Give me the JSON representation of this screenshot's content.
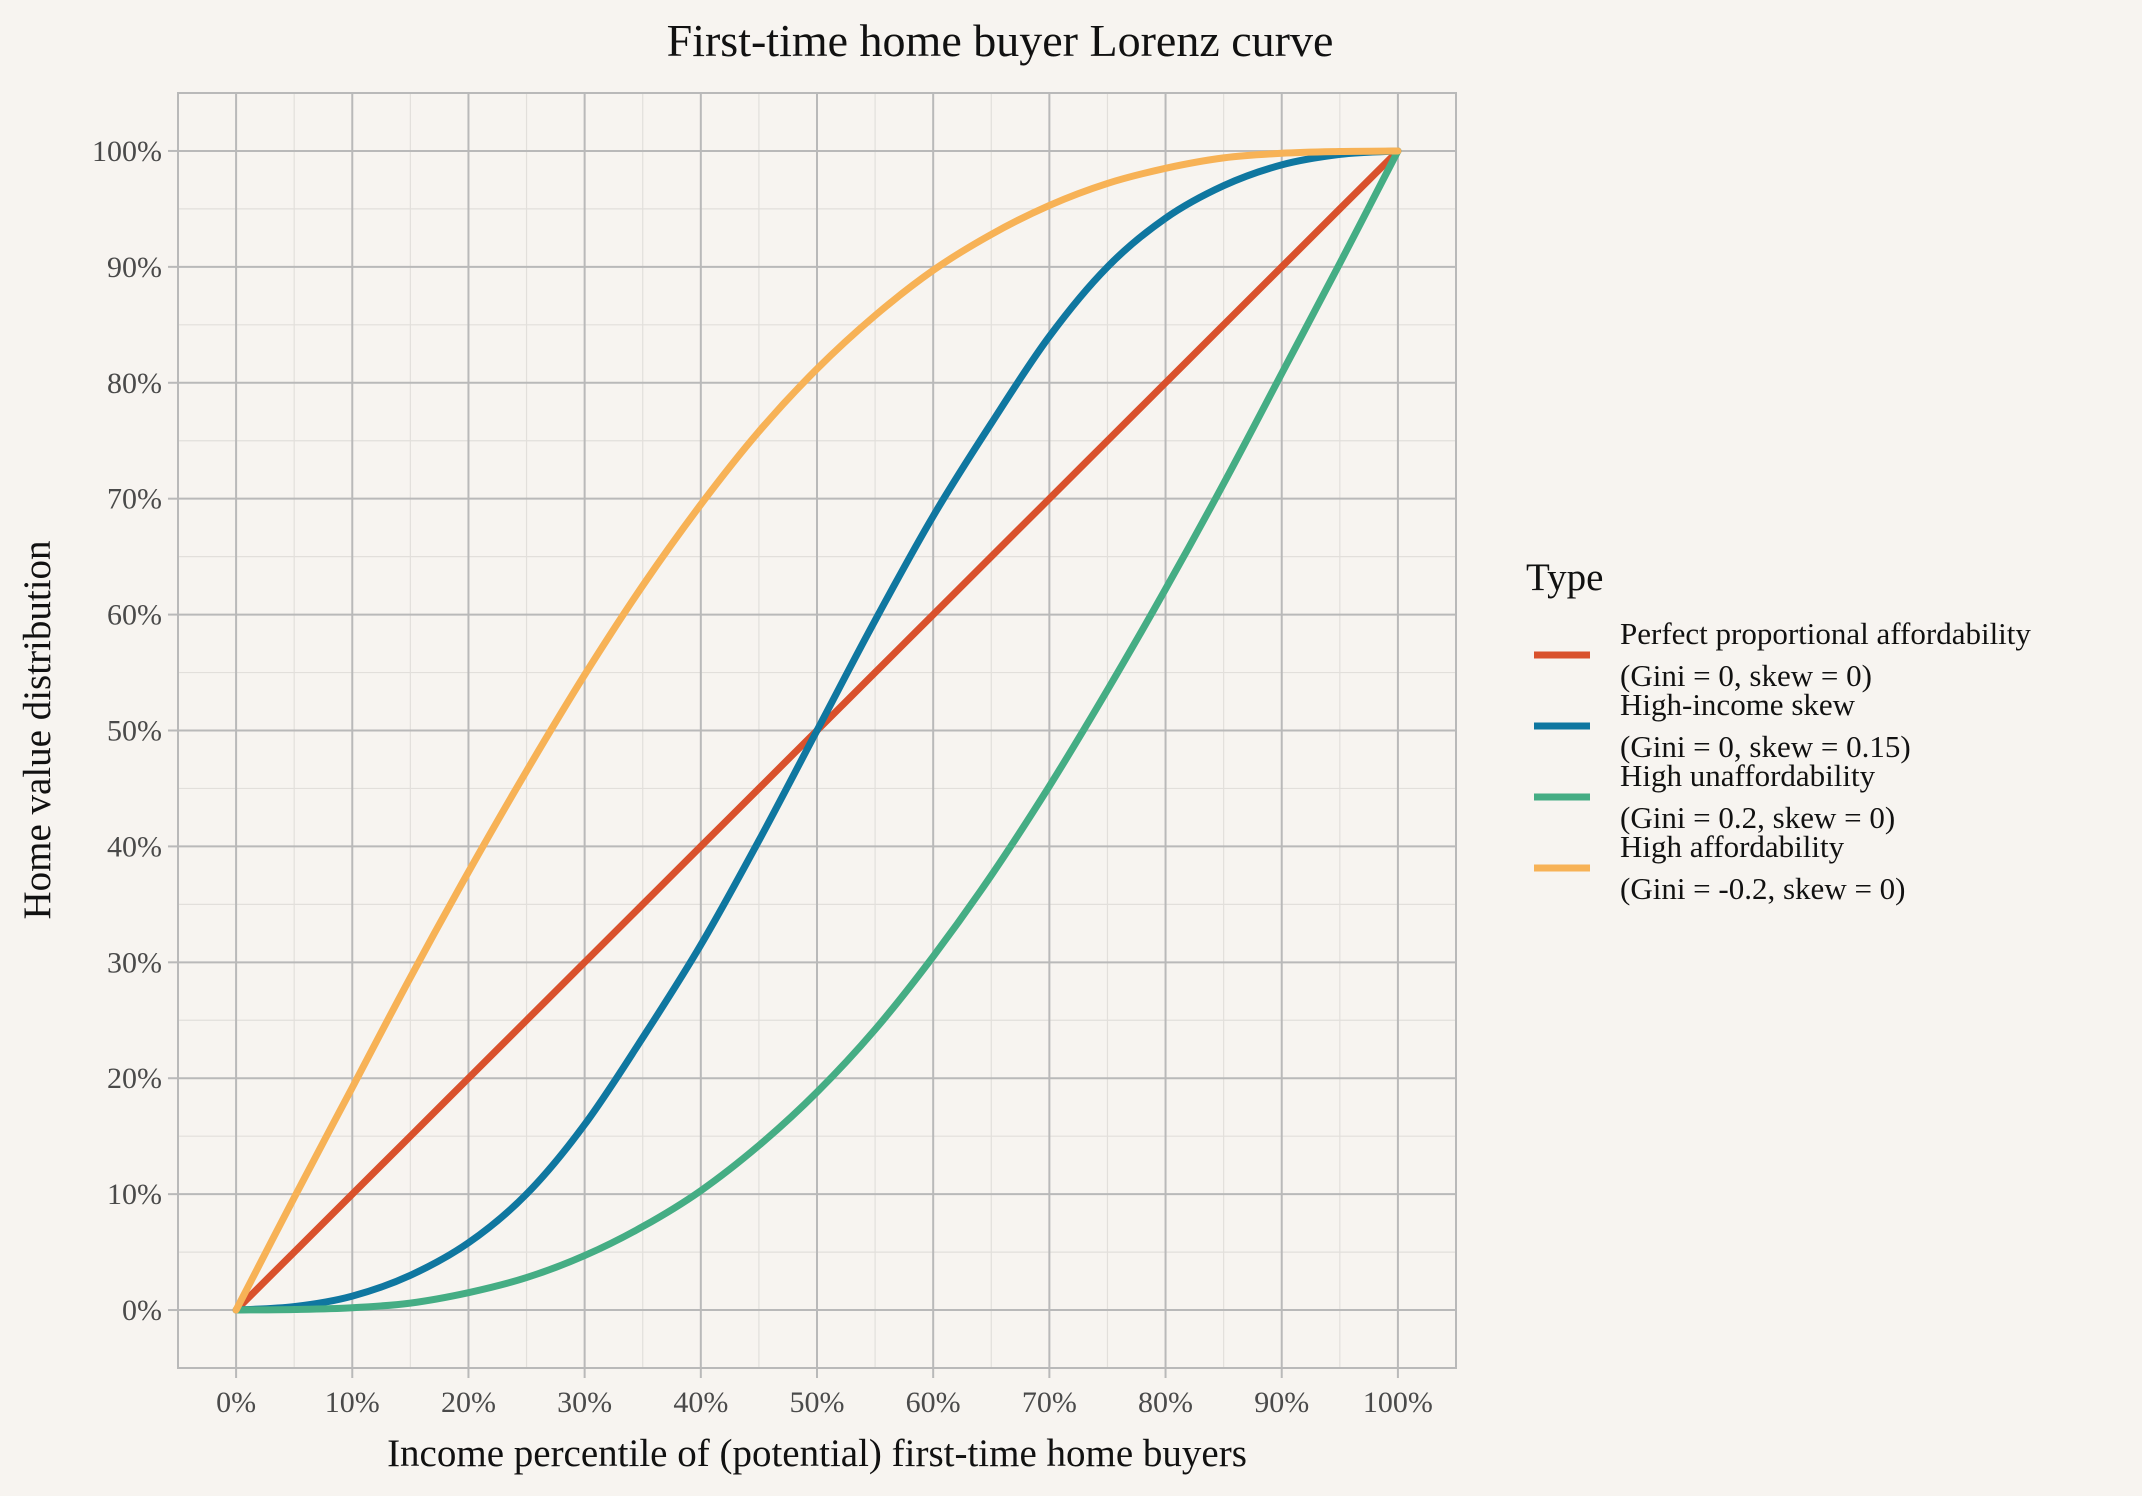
{
  "chart_data": {
    "type": "line",
    "title": "First-time home buyer Lorenz curve",
    "xlabel": "Income percentile of (potential) first-time home buyers",
    "ylabel": "Home value distribution",
    "xlim": [
      -0.05,
      1.05
    ],
    "ylim": [
      -0.05,
      1.05
    ],
    "x_ticks": [
      0,
      0.1,
      0.2,
      0.3,
      0.4,
      0.5,
      0.6,
      0.7,
      0.8,
      0.9,
      1.0
    ],
    "x_tick_labels": [
      "0%",
      "10%",
      "20%",
      "30%",
      "40%",
      "50%",
      "60%",
      "70%",
      "80%",
      "90%",
      "100%"
    ],
    "y_ticks": [
      0,
      0.1,
      0.2,
      0.3,
      0.4,
      0.5,
      0.6,
      0.7,
      0.8,
      0.9,
      1.0
    ],
    "y_tick_labels": [
      "0%",
      "10%",
      "20%",
      "30%",
      "40%",
      "50%",
      "60%",
      "70%",
      "80%",
      "90%",
      "100%"
    ],
    "grid": true,
    "legend": {
      "title": "Type",
      "position": "right"
    },
    "x": [
      0,
      0.05,
      0.1,
      0.15,
      0.2,
      0.25,
      0.3,
      0.35,
      0.4,
      0.45,
      0.5,
      0.55,
      0.6,
      0.65,
      0.7,
      0.75,
      0.8,
      0.85,
      0.9,
      0.95,
      1.0
    ],
    "series": [
      {
        "name": "Perfect proportional affordability",
        "name_line2": "(Gini = 0, skew = 0)",
        "color": "#d9512c",
        "values": [
          0,
          0.05,
          0.1,
          0.15,
          0.2,
          0.25,
          0.3,
          0.35,
          0.4,
          0.45,
          0.5,
          0.55,
          0.6,
          0.65,
          0.7,
          0.75,
          0.8,
          0.85,
          0.9,
          0.95,
          1.0
        ]
      },
      {
        "name": "High-income skew",
        "name_line2": "(Gini = 0, skew = 0.15)",
        "color": "#0f77a0",
        "values": [
          0,
          0.003,
          0.012,
          0.03,
          0.058,
          0.1,
          0.16,
          0.235,
          0.315,
          0.405,
          0.5,
          0.595,
          0.685,
          0.765,
          0.84,
          0.9,
          0.942,
          0.97,
          0.988,
          0.997,
          1.0
        ]
      },
      {
        "name": "High unaffordability",
        "name_line2": "(Gini = 0.2, skew = 0)",
        "color": "#45ad84",
        "values": [
          0,
          0.0005,
          0.002,
          0.006,
          0.015,
          0.028,
          0.047,
          0.072,
          0.103,
          0.142,
          0.188,
          0.242,
          0.305,
          0.375,
          0.452,
          0.535,
          0.622,
          0.713,
          0.808,
          0.903,
          1.0
        ]
      },
      {
        "name": "High affordability",
        "name_line2": "(Gini = -0.2, skew = 0)",
        "color": "#f7b256",
        "values": [
          0,
          0.097,
          0.192,
          0.287,
          0.378,
          0.465,
          0.548,
          0.625,
          0.695,
          0.758,
          0.812,
          0.858,
          0.897,
          0.928,
          0.953,
          0.972,
          0.985,
          0.994,
          0.998,
          0.9995,
          1.0
        ]
      }
    ]
  }
}
